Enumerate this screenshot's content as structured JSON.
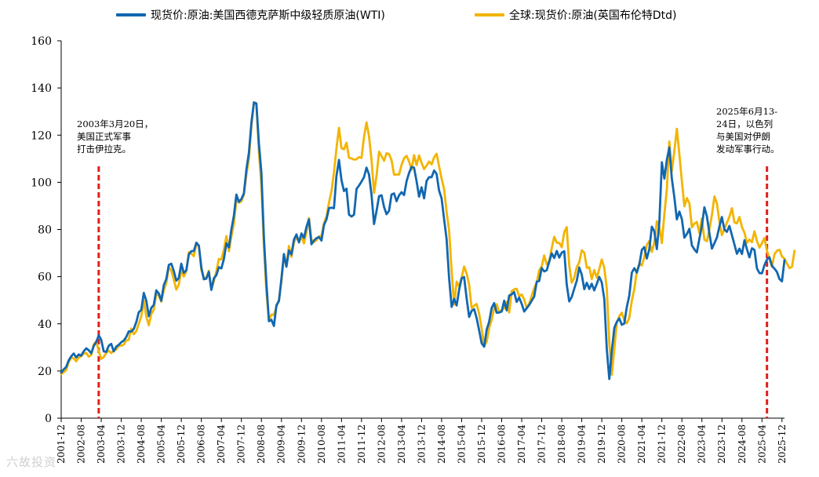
{
  "chart_data": {
    "type": "line",
    "title": "",
    "xlabel": "",
    "ylabel": "",
    "ylim": [
      0,
      160
    ],
    "yticks": [
      0,
      20,
      40,
      60,
      80,
      100,
      120,
      140,
      160
    ],
    "x_start": "2001-12",
    "x_tick_step_months": 8,
    "x_ticks": [
      "2001-12",
      "2002-08",
      "2003-04",
      "2003-12",
      "2004-08",
      "2005-04",
      "2005-12",
      "2006-08",
      "2007-04",
      "2007-12",
      "2008-08",
      "2009-04",
      "2009-12",
      "2010-08",
      "2011-04",
      "2011-12",
      "2012-08",
      "2013-04",
      "2013-12",
      "2014-08",
      "2015-04",
      "2015-12",
      "2016-08",
      "2017-04",
      "2017-12",
      "2018-08",
      "2019-04",
      "2019-12",
      "2020-08",
      "2021-04",
      "2021-12",
      "2022-08",
      "2023-04",
      "2023-12",
      "2024-08",
      "2025-04",
      "2025-12"
    ],
    "series": [
      {
        "name": "现货价:原油:美国西德克萨斯中级轻质原油(WTI)",
        "color": "#1167b1",
        "values": [
          19.3,
          20.7,
          21.7,
          24.5,
          26.2,
          27.4,
          25.7,
          27.0,
          26.5,
          28.3,
          29.6,
          28.8,
          27.5,
          30.6,
          32.3,
          35.1,
          33.3,
          28.3,
          28.1,
          30.7,
          31.5,
          28.3,
          30.3,
          31.1,
          32.2,
          32.9,
          34.4,
          36.8,
          36.7,
          37.8,
          40.7,
          44.9,
          45.9,
          53.1,
          49.8,
          43.2,
          46.8,
          48.0,
          54.2,
          52.9,
          49.8,
          56.4,
          59.0,
          65.0,
          65.5,
          62.3,
          58.3,
          59.4,
          65.5,
          61.6,
          62.7,
          69.4,
          70.8,
          70.9,
          74.4,
          73.1,
          63.8,
          58.9,
          59.1,
          62.0,
          54.4,
          59.3,
          60.6,
          64.0,
          63.5,
          67.5,
          74.1,
          72.4,
          79.9,
          85.8,
          94.8,
          91.7,
          92.9,
          95.3,
          105.4,
          112.6,
          125.4,
          133.9,
          133.4,
          116.7,
          104.1,
          76.6,
          57.3,
          41.1,
          41.7,
          39.1,
          47.9,
          49.7,
          59.0,
          69.6,
          64.2,
          71.1,
          69.4,
          75.7,
          77.9,
          74.5,
          78.3,
          76.4,
          81.2,
          84.3,
          73.7,
          75.3,
          76.3,
          76.8,
          75.3,
          81.9,
          84.3,
          89.1,
          89.2,
          89.0,
          102.7,
          109.5,
          100.9,
          96.3,
          97.3,
          86.3,
          85.5,
          86.3,
          97.2,
          98.6,
          100.3,
          102.2,
          106.2,
          103.3,
          94.7,
          82.3,
          87.9,
          94.1,
          94.5,
          89.5,
          86.5,
          87.9,
          94.8,
          95.3,
          92.0,
          94.5,
          95.8,
          94.6,
          100.5,
          104.0,
          106.5,
          106.2,
          100.5,
          93.9,
          97.9,
          93.2,
          100.6,
          102.2,
          102.2,
          105.0,
          103.6,
          96.5,
          93.2,
          84.4,
          75.8,
          59.3,
          47.2,
          50.6,
          47.8,
          54.5,
          59.3,
          59.8,
          50.9,
          42.9,
          45.5,
          46.2,
          42.4,
          37.2,
          31.7,
          30.3,
          37.6,
          40.8,
          46.7,
          48.8,
          44.7,
          44.8,
          45.2,
          49.8,
          45.7,
          52.0,
          52.5,
          53.5,
          49.3,
          51.1,
          48.5,
          45.2,
          46.6,
          48.0,
          49.8,
          51.6,
          57.9,
          58.1,
          63.7,
          62.2,
          62.7,
          66.3,
          69.9,
          67.9,
          70.9,
          68.1,
          70.2,
          70.8,
          56.7,
          49.5,
          51.4,
          54.9,
          58.2,
          63.9,
          60.8,
          54.7,
          57.4,
          54.8,
          57.0,
          54.2,
          56.9,
          59.9,
          57.5,
          50.5,
          29.2,
          16.6,
          28.5,
          38.3,
          40.8,
          42.3,
          39.6,
          40.1,
          47.1,
          52.0,
          61.7,
          63.6,
          61.7,
          65.2,
          71.4,
          72.5,
          67.7,
          71.6,
          81.2,
          79.2,
          71.7,
          83.2,
          108.5,
          101.6,
          109.6,
          114.8,
          101.6,
          93.7,
          84.3,
          87.6,
          84.4,
          76.5,
          78.1,
          80.3,
          73.2,
          71.6,
          70.3,
          76.0,
          81.4,
          89.4,
          85.6,
          78.3,
          71.9,
          74.2,
          76.6,
          81.3,
          85.3,
          80.0,
          79.0,
          81.5,
          77.6,
          73.6,
          69.7,
          71.9,
          69.6,
          75.4,
          71.7,
          68.2,
          72.0,
          71.4,
          63.5,
          61.5,
          61.4,
          64.9,
          67.3,
          68.2,
          64.6,
          63.4,
          62.0,
          59.0,
          58.0,
          67.0
        ]
      },
      {
        "name": "全球:现货价:原油(英国布伦特Dtd)",
        "color": "#f3b400",
        "values": [
          18.7,
          19.5,
          20.4,
          23.8,
          25.7,
          25.3,
          24.1,
          25.6,
          26.3,
          27.4,
          27.6,
          26.1,
          26.7,
          31.3,
          32.6,
          28.4,
          25.1,
          25.9,
          27.6,
          28.6,
          27.6,
          28.8,
          29.1,
          30.7,
          30.7,
          31.2,
          33.0,
          33.2,
          38.0,
          35.6,
          36.9,
          40.0,
          43.2,
          49.8,
          43.1,
          39.4,
          44.2,
          45.9,
          52.9,
          52.0,
          49.4,
          54.2,
          57.3,
          64.1,
          62.5,
          58.7,
          54.5,
          56.6,
          62.9,
          60.0,
          62.3,
          70.4,
          69.8,
          68.7,
          73.8,
          73.1,
          62.8,
          59.7,
          59.5,
          62.5,
          54.7,
          58.0,
          62.3,
          67.5,
          67.3,
          71.4,
          77.2,
          70.8,
          77.0,
          82.4,
          92.5,
          91.4,
          91.9,
          94.8,
          103.3,
          110.0,
          123.9,
          133.9,
          133.5,
          113.0,
          98.9,
          72.8,
          53.5,
          41.6,
          43.9,
          43.8,
          47.2,
          50.3,
          57.8,
          68.6,
          64.7,
          73.0,
          68.4,
          74.5,
          76.8,
          74.8,
          76.8,
          74.1,
          79.0,
          84.8,
          75.7,
          74.6,
          75.5,
          77.0,
          77.3,
          82.8,
          85.4,
          91.5,
          96.3,
          104.1,
          114.4,
          123.1,
          114.5,
          114.0,
          116.8,
          110.4,
          110.1,
          109.6,
          109.8,
          110.7,
          110.3,
          119.2,
          125.4,
          119.5,
          109.5,
          95.5,
          102.8,
          113.0,
          111.1,
          109.1,
          112.3,
          112.0,
          109.4,
          103.3,
          103.3,
          103.3,
          107.4,
          110.2,
          111.2,
          108.8,
          105.3,
          111.5,
          107.3,
          111.4,
          108.2,
          105.6,
          107.1,
          108.8,
          107.6,
          110.6,
          112.1,
          106.8,
          101.6,
          97.1,
          87.5,
          79.5,
          62.5,
          48.1,
          57.9,
          55.8,
          59.4,
          64.3,
          61.4,
          56.6,
          46.7,
          47.7,
          48.4,
          44.3,
          38.0,
          30.7,
          32.4,
          38.2,
          41.6,
          46.7,
          48.3,
          44.9,
          45.8,
          46.6,
          49.3,
          44.8,
          53.9,
          54.6,
          54.9,
          51.6,
          52.5,
          50.4,
          46.6,
          48.6,
          51.9,
          55.2,
          57.5,
          62.7,
          64.3,
          69.0,
          65.2,
          66.5,
          72.1,
          76.9,
          74.4,
          74.3,
          72.5,
          78.9,
          81.0,
          64.8,
          57.4,
          59.5,
          64.0,
          66.1,
          71.2,
          70.2,
          63.8,
          64.0,
          59.0,
          62.8,
          59.6,
          63.2,
          67.3,
          63.7,
          55.0,
          32.0,
          18.4,
          29.4,
          40.3,
          43.2,
          44.7,
          41.5,
          40.2,
          42.6,
          49.8,
          54.8,
          62.3,
          65.7,
          64.7,
          68.3,
          73.4,
          75.1,
          70.5,
          74.5,
          83.5,
          81.1,
          74.2,
          86.5,
          97.2,
          117.3,
          104.6,
          113.3,
          122.7,
          111.9,
          100.5,
          89.8,
          93.3,
          91.1,
          80.9,
          82.5,
          83.2,
          78.5,
          84.7,
          75.7,
          75.0,
          80.1,
          86.2,
          94.0,
          91.0,
          83.2,
          77.6,
          80.1,
          82.9,
          85.4,
          89.0,
          83.0,
          82.6,
          85.3,
          81.0,
          78.6,
          74.3,
          75.7,
          74.6,
          79.2,
          75.1,
          72.3,
          74.2,
          76.4,
          70.9,
          67.7,
          64.2,
          69.5,
          71.0,
          71.4,
          68.6,
          67.6,
          65.5,
          63.6,
          64.2,
          71.0
        ]
      }
    ],
    "annotations": [
      {
        "x": "2003-03",
        "lines": [
          "2003年3月20日，",
          "美国正式军事",
          "打击伊拉克。"
        ]
      },
      {
        "x": "2025-06",
        "lines": [
          "2025年6月13-",
          "24日，以色列",
          "与美国对伊朗",
          "发动军事行动。"
        ]
      }
    ]
  },
  "watermark": "六故投资"
}
